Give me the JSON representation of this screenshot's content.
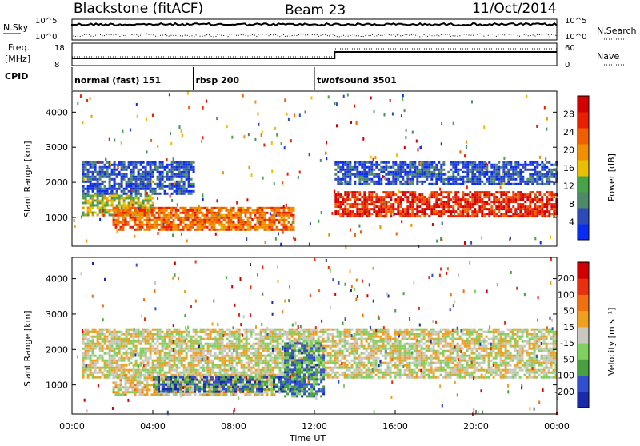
{
  "header": {
    "station": "Blackstone (fitACF)",
    "beam": "Beam 23",
    "date": "11/Oct/2014"
  },
  "noise_panel": {
    "left_label": "N.Sky",
    "right_label": "N.Search",
    "left_ticks": [
      "10^5",
      "10^0"
    ],
    "right_ticks": [
      "10^5",
      "10^0"
    ]
  },
  "freq_panel": {
    "left_label_1": "Freq.",
    "left_label_2": "[MHz]",
    "right_label": "Nave",
    "left_ticks": [
      "18",
      "8"
    ],
    "right_ticks": [
      "60",
      "0"
    ],
    "step_hour": 13.0
  },
  "cpid": {
    "label": "CPID",
    "modes": [
      {
        "name": "normal (fast) 151",
        "start_hour": 0
      },
      {
        "name": "rbsp 200",
        "start_hour": 6.0
      },
      {
        "name": "twofsound 3501",
        "start_hour": 12.0
      }
    ]
  },
  "chart_data": [
    {
      "type": "heatmap",
      "name": "Power",
      "ylabel": "Slant Range [km]",
      "xlim_hours": [
        0,
        24
      ],
      "ylim_km": [
        180,
        4600
      ],
      "y_ticks": [
        "1000",
        "2000",
        "3000",
        "4000"
      ],
      "colorbar": {
        "label": "Power [dB]",
        "ticks": [
          "4",
          "8",
          "12",
          "16",
          "20",
          "24",
          "28"
        ],
        "colors": [
          "#0a2cf0",
          "#2e4ab8",
          "#4c8a6a",
          "#47a347",
          "#e8c000",
          "#f09000",
          "#f06000",
          "#e82000",
          "#d40000"
        ]
      },
      "bands": [
        {
          "start": 0.5,
          "end": 6.0,
          "lo": 1650,
          "hi": 2600,
          "level": 0.15
        },
        {
          "start": 0.5,
          "end": 4.0,
          "lo": 1050,
          "hi": 1650,
          "level": 0.45
        },
        {
          "start": 2.0,
          "end": 11.0,
          "lo": 650,
          "hi": 1300,
          "level": 0.7
        },
        {
          "start": 13.0,
          "end": 24.0,
          "lo": 1000,
          "hi": 1750,
          "level": 0.85
        },
        {
          "start": 13.0,
          "end": 24.0,
          "lo": 1950,
          "hi": 2600,
          "level": 0.15
        }
      ]
    },
    {
      "type": "heatmap",
      "name": "Velocity",
      "ylabel": "Slant Range [km]",
      "xlim_hours": [
        0,
        24
      ],
      "ylim_km": [
        180,
        4600
      ],
      "y_ticks": [
        "1000",
        "2000",
        "3000",
        "4000"
      ],
      "colorbar": {
        "label": "Velocity [m s⁻¹]",
        "ticks": [
          "200",
          "100",
          "50",
          "15",
          "-15",
          "-50",
          "-100",
          "-200"
        ],
        "colors": [
          "#1a2aa8",
          "#3050d0",
          "#4aa040",
          "#80d060",
          "#c8c8c0",
          "#f0a020",
          "#f07010",
          "#e83010",
          "#d00000"
        ]
      },
      "bands": [
        {
          "start": 0.5,
          "end": 24,
          "lo": 1200,
          "hi": 2600,
          "level": 0.5
        },
        {
          "start": 2.0,
          "end": 10.0,
          "lo": 700,
          "hi": 1300,
          "level": 0.55
        },
        {
          "start": 4.0,
          "end": 11.5,
          "lo": 800,
          "hi": 1250,
          "level": 0.2
        },
        {
          "start": 10.5,
          "end": 12.5,
          "lo": 700,
          "hi": 2200,
          "level": 0.25
        }
      ]
    }
  ],
  "x_axis": {
    "label": "Time UT",
    "ticks": [
      "00:00",
      "04:00",
      "08:00",
      "12:00",
      "16:00",
      "20:00",
      "00:00"
    ]
  }
}
